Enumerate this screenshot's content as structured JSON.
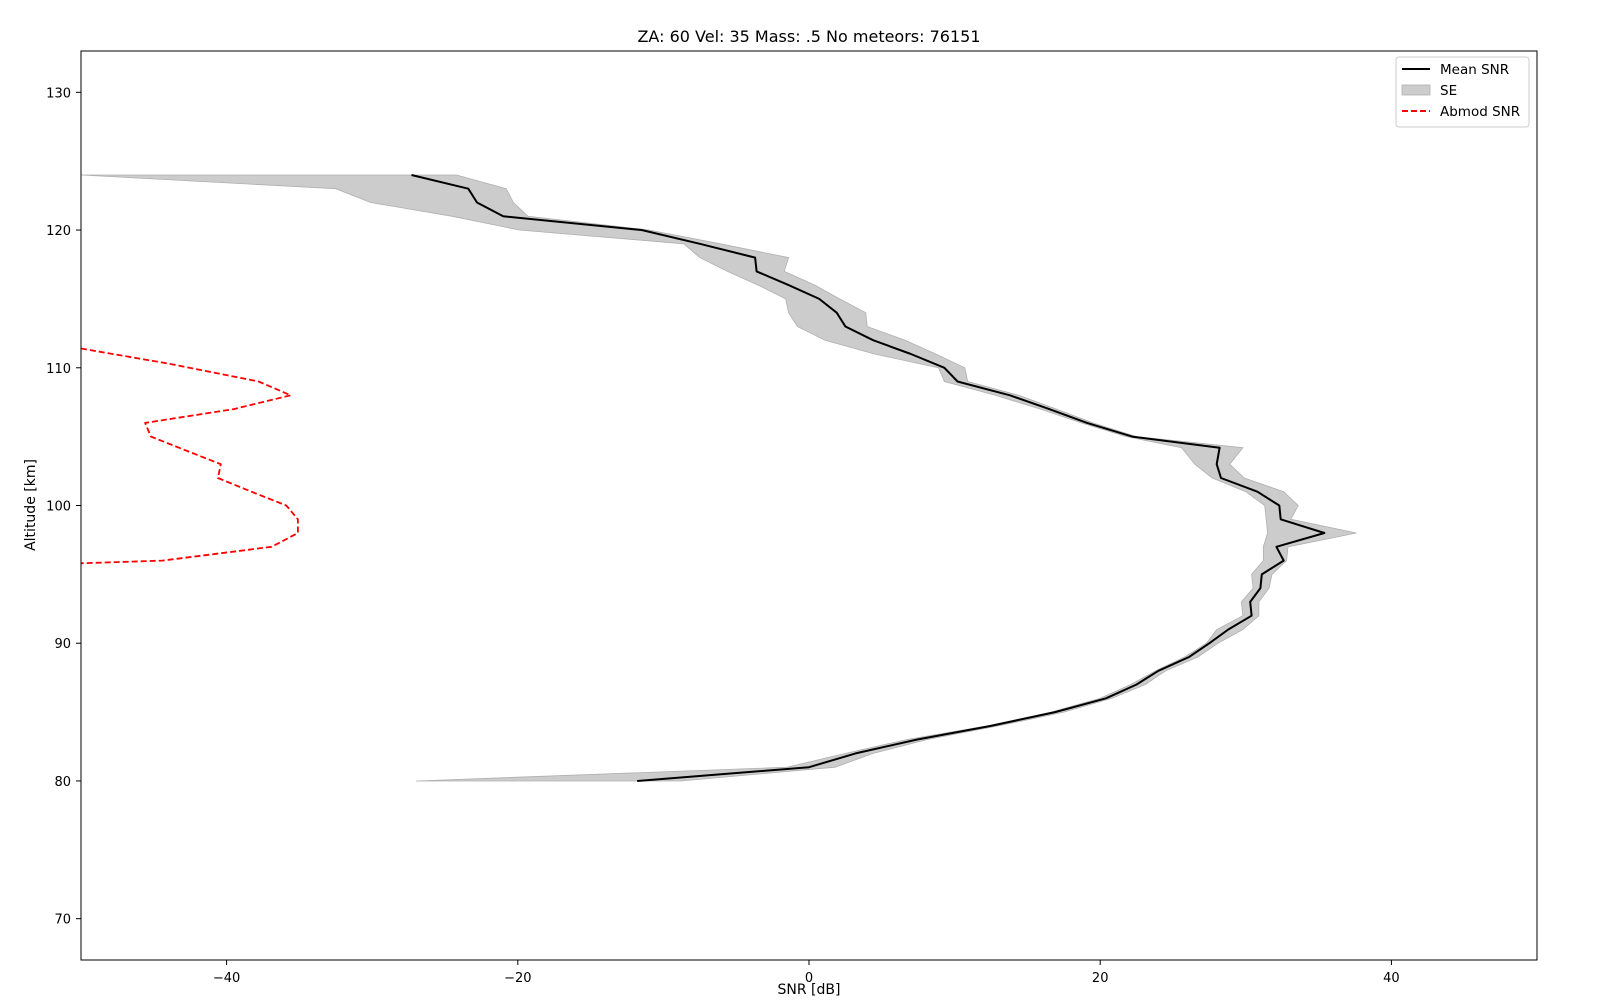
{
  "chart_data": {
    "type": "line",
    "title": "ZA: 60 Vel: 35 Mass: .5 No meteors: 76151",
    "xlabel": "SNR [dB]",
    "ylabel": "Altitude [km]",
    "xlim": [
      -50,
      50
    ],
    "ylim": [
      67,
      133
    ],
    "xticks": [
      -40,
      -20,
      0,
      20,
      40
    ],
    "yticks": [
      70,
      80,
      90,
      100,
      110,
      120,
      130
    ],
    "grid": false,
    "legend": {
      "placement": "top-right",
      "entries": [
        {
          "label": "Mean SNR",
          "style": "solid-line",
          "color": "#000000"
        },
        {
          "label": "SE",
          "style": "filled-patch",
          "color": "#cccccc"
        },
        {
          "label": "Abmod SNR",
          "style": "dashed-line",
          "color": "#ff0000"
        }
      ]
    },
    "series": [
      {
        "name": "Mean SNR",
        "color": "#000000",
        "style": "solid",
        "points": [
          [
            -27.3,
            124
          ],
          [
            -23.4,
            123
          ],
          [
            -22.8,
            122
          ],
          [
            -21.0,
            121
          ],
          [
            -11.5,
            120
          ],
          [
            -7.5,
            119
          ],
          [
            -3.7,
            118
          ],
          [
            -3.6,
            117
          ],
          [
            -1.4,
            116
          ],
          [
            0.7,
            115
          ],
          [
            1.9,
            114
          ],
          [
            2.5,
            113
          ],
          [
            4.4,
            112
          ],
          [
            7.0,
            111
          ],
          [
            9.3,
            110
          ],
          [
            10.2,
            109
          ],
          [
            13.8,
            108
          ],
          [
            16.5,
            107
          ],
          [
            19.1,
            106
          ],
          [
            22.2,
            105
          ],
          [
            28.2,
            104.2
          ],
          [
            28.0,
            103
          ],
          [
            28.3,
            102
          ],
          [
            30.8,
            101
          ],
          [
            32.3,
            100
          ],
          [
            32.4,
            99
          ],
          [
            35.4,
            98
          ],
          [
            32.1,
            97
          ],
          [
            32.6,
            96
          ],
          [
            31.1,
            95
          ],
          [
            31.0,
            94
          ],
          [
            30.3,
            93
          ],
          [
            30.4,
            92
          ],
          [
            28.8,
            91
          ],
          [
            27.5,
            90
          ],
          [
            26.1,
            89
          ],
          [
            24.0,
            88
          ],
          [
            22.5,
            87
          ],
          [
            20.4,
            86
          ],
          [
            16.9,
            85
          ],
          [
            12.5,
            84
          ],
          [
            7.4,
            83
          ],
          [
            3.2,
            82
          ],
          [
            0.0,
            81
          ],
          [
            -11.8,
            80
          ]
        ]
      },
      {
        "name": "Abmod SNR",
        "color": "#ff0000",
        "style": "dashed",
        "points": [
          [
            -50.0,
            111.4
          ],
          [
            -44.0,
            110.3
          ],
          [
            -37.8,
            109
          ],
          [
            -35.6,
            108
          ],
          [
            -39.5,
            107
          ],
          [
            -45.6,
            106
          ],
          [
            -45.2,
            105
          ],
          [
            -42.8,
            104
          ],
          [
            -40.4,
            103
          ],
          [
            -40.6,
            102
          ],
          [
            -38.3,
            101
          ],
          [
            -35.9,
            100
          ],
          [
            -35.1,
            99
          ],
          [
            -35.1,
            98
          ],
          [
            -36.9,
            97
          ],
          [
            -44.4,
            96
          ],
          [
            -50.0,
            95.8
          ]
        ]
      }
    ],
    "band": {
      "name": "SE",
      "color": "#cccccc",
      "altitudes": [
        124,
        123,
        122,
        121,
        120,
        119,
        118,
        117,
        116,
        115,
        114,
        113,
        112,
        111,
        110,
        109,
        108,
        107,
        106,
        105,
        104.2,
        103,
        102,
        101,
        100,
        99,
        98,
        97,
        96,
        95,
        94,
        93,
        92,
        91,
        90,
        89,
        88,
        87,
        86,
        85,
        84,
        83,
        82,
        81,
        80
      ],
      "lower": [
        -50.0,
        -32.5,
        -30.1,
        -24.5,
        -19.9,
        -8.6,
        -7.5,
        -5.6,
        -3.5,
        -1.6,
        -1.4,
        -0.8,
        1.1,
        4.5,
        8.9,
        9.3,
        12.8,
        15.9,
        18.7,
        21.8,
        25.6,
        26.5,
        27.7,
        30.0,
        31.3,
        31.4,
        31.5,
        31.2,
        31.2,
        30.4,
        30.5,
        29.7,
        29.8,
        28.0,
        27.3,
        25.8,
        23.8,
        22.1,
        20.0,
        16.6,
        12.2,
        6.7,
        2.5,
        -1.5,
        -27.0
      ],
      "upper": [
        -24.2,
        -20.8,
        -20.3,
        -19.3,
        -11.0,
        -6.1,
        -1.4,
        -1.7,
        0.4,
        2.1,
        3.9,
        4.0,
        6.6,
        8.7,
        10.7,
        10.9,
        14.4,
        17.0,
        19.5,
        22.5,
        29.8,
        28.9,
        29.9,
        32.6,
        33.6,
        33.1,
        37.6,
        32.9,
        32.8,
        31.8,
        31.6,
        30.9,
        30.9,
        29.8,
        28.1,
        26.7,
        24.5,
        23.1,
        20.8,
        17.5,
        13.0,
        8.1,
        4.4,
        1.8,
        -8.8
      ]
    }
  }
}
